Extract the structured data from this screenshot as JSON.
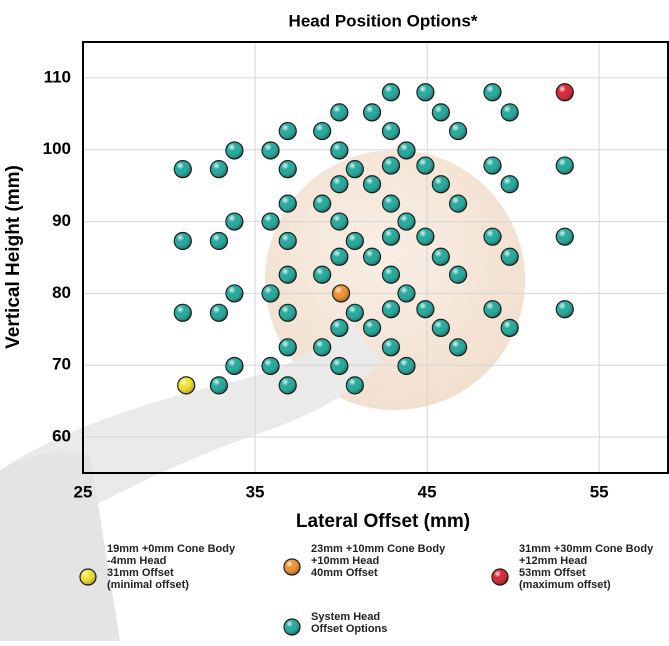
{
  "chart_data": {
    "type": "scatter",
    "title": "Head Position Options*",
    "x_label": "Lateral Offset (mm)",
    "y_label": "Vertical Height (mm)",
    "xlim": [
      25,
      59
    ],
    "ylim": [
      55,
      115
    ],
    "xticks": [
      25,
      35,
      45,
      55
    ],
    "yticks": [
      60,
      70,
      80,
      90,
      100,
      110
    ],
    "grid": true,
    "series": [
      {
        "name": "19mm +0mm Cone Body",
        "details": [
          "-4mm Head",
          "31mm Offset",
          "(minimal offset)"
        ],
        "color": "#f3e12c",
        "x": [
          31
        ],
        "y": [
          67.2
        ]
      },
      {
        "name": "23mm +10mm Cone Body",
        "details": [
          "+10mm Head",
          "40mm Offset"
        ],
        "color": "#f0902a",
        "x": [
          40
        ],
        "y": [
          80
        ]
      },
      {
        "name": "31mm +30mm Cone Body",
        "details": [
          "+12mm Head",
          "53mm Offset",
          "(maximum offset)"
        ],
        "color": "#d8232e",
        "x": [
          53
        ],
        "y": [
          108
        ]
      },
      {
        "name": "System Head",
        "details": [
          "Offset Options"
        ],
        "color": "#1fa99b",
        "x": [
          42.9,
          44.9,
          48.8,
          39.9,
          41.8,
          45.8,
          49.8,
          36.9,
          38.9,
          42.9,
          46.8,
          33.8,
          35.9,
          39.9,
          43.8,
          30.8,
          32.9,
          36.9,
          40.8,
          42.9,
          44.9,
          48.8,
          53,
          39.9,
          41.8,
          45.8,
          49.8,
          36.9,
          38.9,
          42.9,
          46.8,
          33.8,
          35.9,
          39.9,
          43.8,
          30.8,
          32.9,
          36.9,
          40.8,
          42.9,
          44.9,
          48.8,
          53,
          39.9,
          41.8,
          45.8,
          49.8,
          36.9,
          38.9,
          42.9,
          46.8,
          33.8,
          35.9,
          43.8,
          30.8,
          32.9,
          36.9,
          40.8,
          42.9,
          44.9,
          48.8,
          53,
          39.9,
          41.8,
          45.8,
          49.8,
          36.9,
          38.9,
          42.9,
          46.8,
          33.8,
          35.9,
          39.9,
          43.8,
          32.9,
          36.9,
          40.8
        ],
        "y": [
          108,
          108,
          108,
          105.2,
          105.2,
          105.2,
          105.2,
          102.6,
          102.6,
          102.6,
          102.6,
          99.9,
          99.9,
          99.9,
          99.9,
          97.3,
          97.3,
          97.3,
          97.3,
          97.8,
          97.8,
          97.8,
          97.8,
          95.2,
          95.2,
          95.2,
          95.2,
          92.5,
          92.5,
          92.5,
          92.5,
          90,
          90,
          90,
          90,
          87.3,
          87.3,
          87.3,
          87.3,
          87.9,
          87.9,
          87.9,
          87.9,
          85.1,
          85.1,
          85.1,
          85.1,
          82.6,
          82.6,
          82.6,
          82.6,
          80,
          80,
          80,
          77.3,
          77.3,
          77.3,
          77.3,
          77.8,
          77.8,
          77.8,
          77.8,
          75.2,
          75.2,
          75.2,
          75.2,
          72.5,
          72.5,
          72.5,
          72.5,
          69.9,
          69.9,
          69.9,
          69.9,
          67.2,
          67.2,
          67.2
        ]
      }
    ]
  }
}
